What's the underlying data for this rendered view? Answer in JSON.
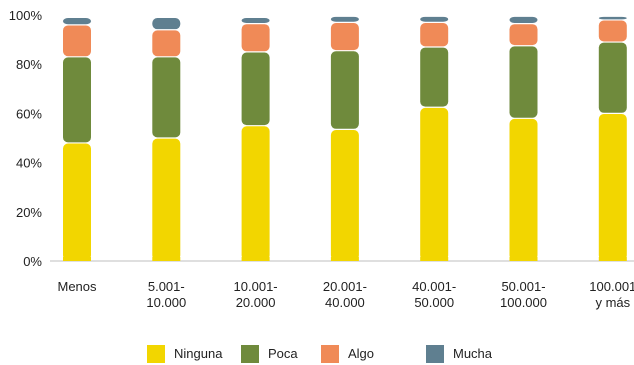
{
  "chart_data": {
    "type": "bar",
    "stacked": true,
    "categories": [
      [
        "Menos"
      ],
      [
        "5.001-",
        "10.000"
      ],
      [
        "10.001-",
        "20.000"
      ],
      [
        "20.001-",
        "40.000"
      ],
      [
        "40.001-",
        "50.000"
      ],
      [
        "50.001-",
        "100.000"
      ],
      [
        "100.001",
        "y más"
      ]
    ],
    "series": [
      {
        "name": "Ninguna",
        "color": "#f2d600",
        "values": [
          48,
          50,
          55,
          53.5,
          62.5,
          58,
          60
        ]
      },
      {
        "name": "Poca",
        "color": "#6f8a3c",
        "values": [
          35,
          33,
          30,
          32,
          24.5,
          29.5,
          29
        ]
      },
      {
        "name": "Algo",
        "color": "#f08a57",
        "values": [
          13,
          11,
          11.5,
          11.5,
          10,
          9,
          9
        ]
      },
      {
        "name": "Mucha",
        "color": "#5f7f90",
        "values": [
          3,
          5,
          2.5,
          2.5,
          2.5,
          3,
          1.5
        ]
      }
    ],
    "yticks": [
      "0%",
      "20%",
      "40%",
      "60%",
      "80%",
      "100%"
    ],
    "ylim": [
      0,
      100
    ],
    "grid": false,
    "legend": "bottom"
  }
}
